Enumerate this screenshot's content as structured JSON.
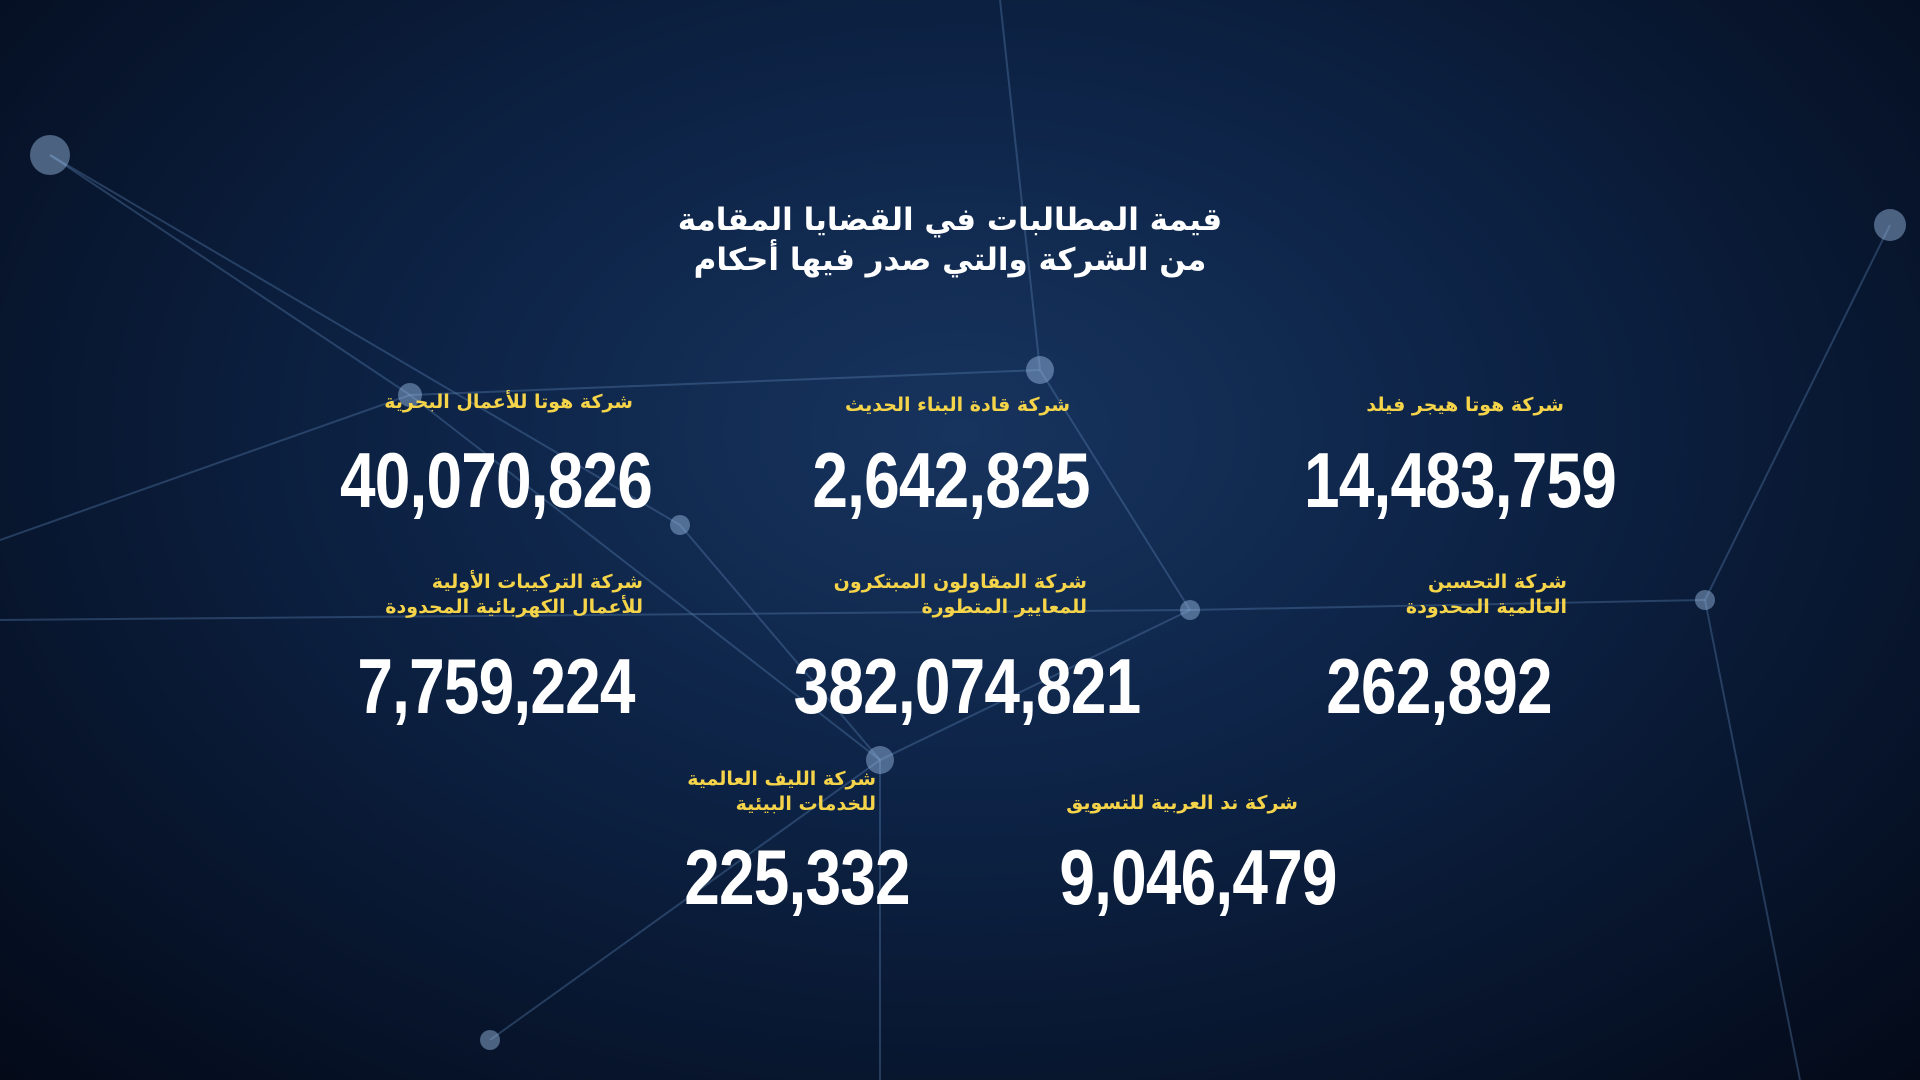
{
  "title": {
    "line1": "قيمة المطالبات في القضايا المقامة",
    "line2": "من الشركة والتي صدر فيها أحكام"
  },
  "colors": {
    "label": "#f5d44a",
    "value": "#ffffff",
    "background": "#0d2346"
  },
  "companies": [
    {
      "name_line1": "شركة هوتا هيجر فيلد",
      "name_line2": "",
      "value": "14,483,759"
    },
    {
      "name_line1": "شركة قادة البناء الحديث",
      "name_line2": "",
      "value": "2,642,825"
    },
    {
      "name_line1": "شركة هوتا للأعمال البحرية",
      "name_line2": "",
      "value": "40,070,826"
    },
    {
      "name_line1": "شركة التحسين",
      "name_line2": "العالمية المحدودة",
      "value": "262,892"
    },
    {
      "name_line1": "شركة المقاولون المبتكرون",
      "name_line2": "للمعايير المتطورة",
      "value": "382,074,821"
    },
    {
      "name_line1": "شركة التركيبات الأولية",
      "name_line2": "للأعمال الكهربائية المحدودة",
      "value": "7,759,224"
    },
    {
      "name_line1": "شركة ند العربية للتسويق",
      "name_line2": "",
      "value": "9,046,479"
    },
    {
      "name_line1": "شركة الليف العالمية",
      "name_line2": "للخدمات البيئية",
      "value": "225,332"
    }
  ]
}
